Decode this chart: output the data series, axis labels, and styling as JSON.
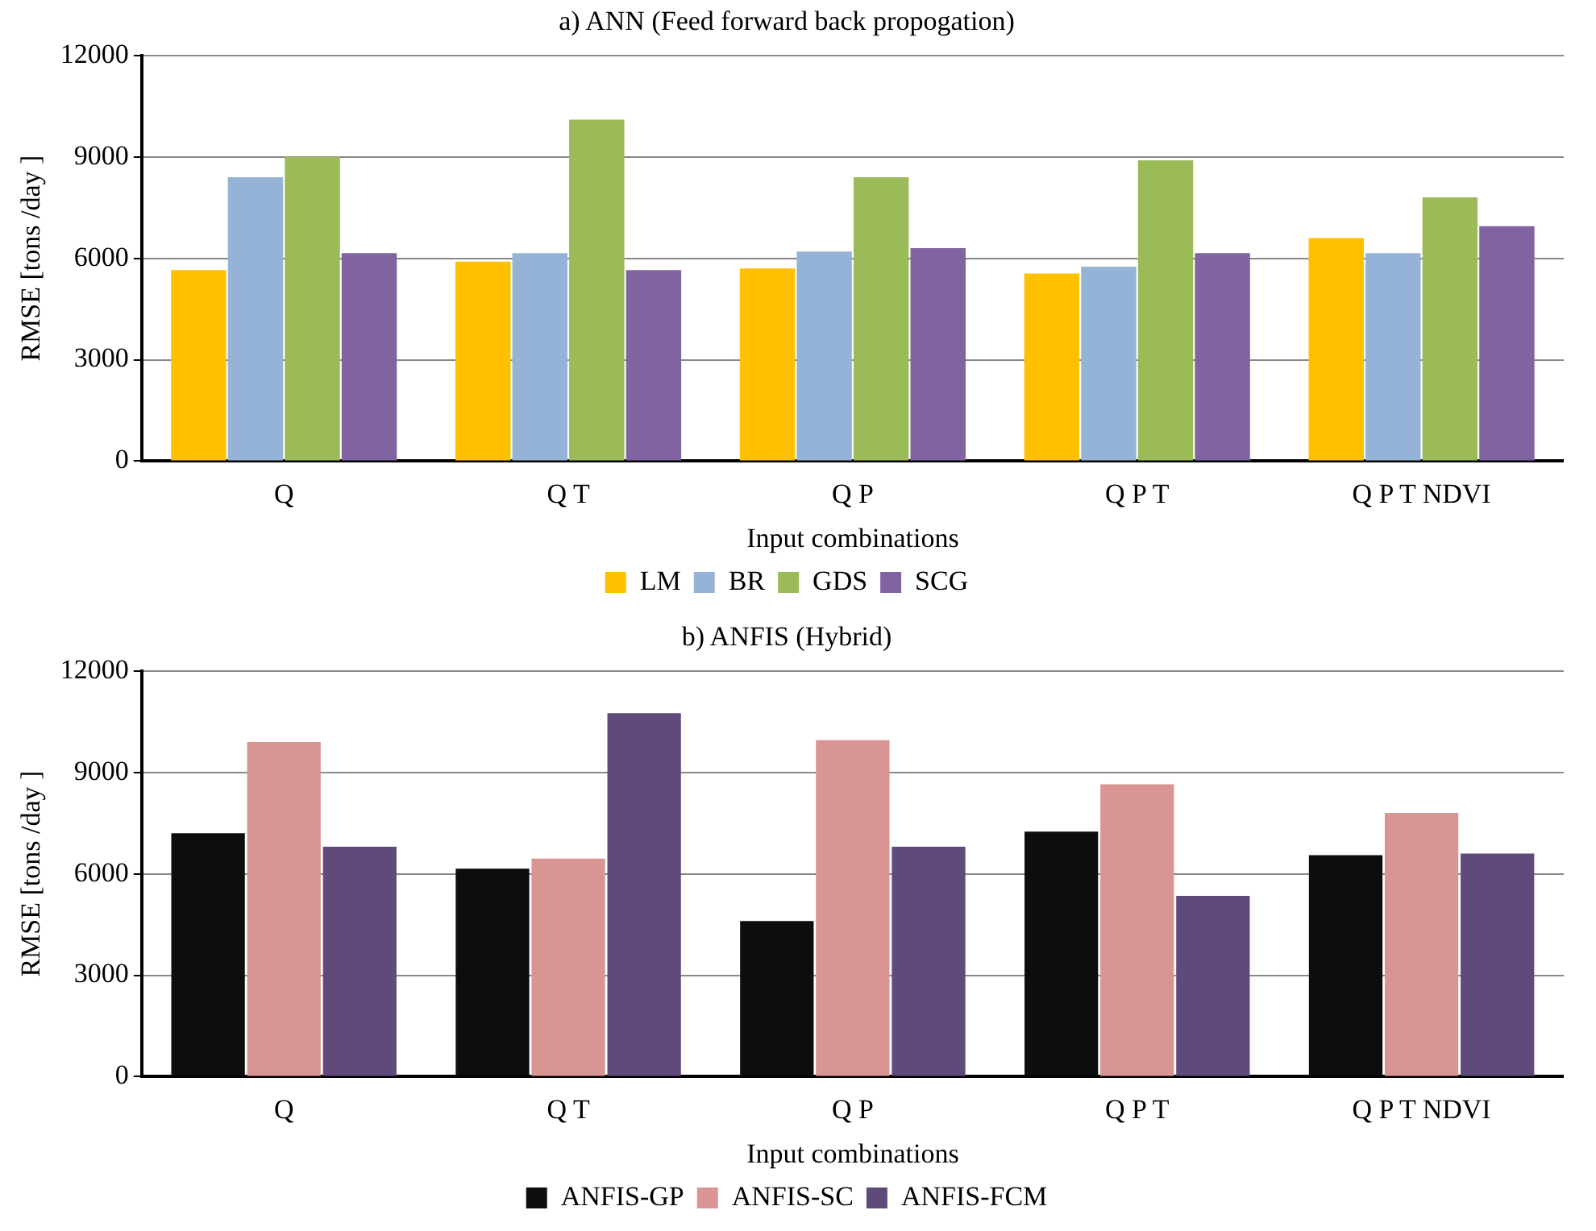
{
  "chart_data": [
    {
      "type": "bar",
      "title": "a) ANN (Feed forward back propogation)",
      "xlabel": "Input combinations",
      "ylabel": "RMSE [tons /day ]",
      "categories": [
        "Q",
        "Q T",
        "Q P",
        "Q P T",
        "Q P T NDVI"
      ],
      "series": [
        {
          "name": "LM",
          "color": "#ffc000",
          "values": [
            5650,
            5900,
            5700,
            5550,
            6600
          ]
        },
        {
          "name": "BR",
          "color": "#95b3d7",
          "values": [
            8400,
            6150,
            6200,
            5750,
            6150
          ]
        },
        {
          "name": "GDS",
          "color": "#9bbb59",
          "values": [
            9000,
            10100,
            8400,
            8900,
            7800
          ]
        },
        {
          "name": "SCG",
          "color": "#8064a2",
          "values": [
            6150,
            5650,
            6300,
            6150,
            6950
          ]
        }
      ],
      "ylim": [
        0,
        12000
      ],
      "yticks": [
        0,
        3000,
        6000,
        9000,
        12000
      ],
      "grid": "y",
      "legend": "bottom"
    },
    {
      "type": "bar",
      "title": "b) ANFIS (Hybrid)",
      "xlabel": "Input combinations",
      "ylabel": "RMSE [tons /day ]",
      "categories": [
        "Q",
        "Q T",
        "Q P",
        "Q P T",
        "Q P T NDVI"
      ],
      "series": [
        {
          "name": "ANFIS-GP",
          "color": "#0d0d0d",
          "values": [
            7200,
            6150,
            4600,
            7250,
            6550
          ]
        },
        {
          "name": "ANFIS-SC",
          "color": "#d99594",
          "values": [
            9900,
            6450,
            9950,
            8650,
            7800
          ]
        },
        {
          "name": "ANFIS-FCM",
          "color": "#604a7b",
          "values": [
            6800,
            10750,
            6800,
            5350,
            6600
          ]
        }
      ],
      "ylim": [
        0,
        12000
      ],
      "yticks": [
        0,
        3000,
        6000,
        9000,
        12000
      ],
      "grid": "y",
      "legend": "bottom"
    }
  ]
}
